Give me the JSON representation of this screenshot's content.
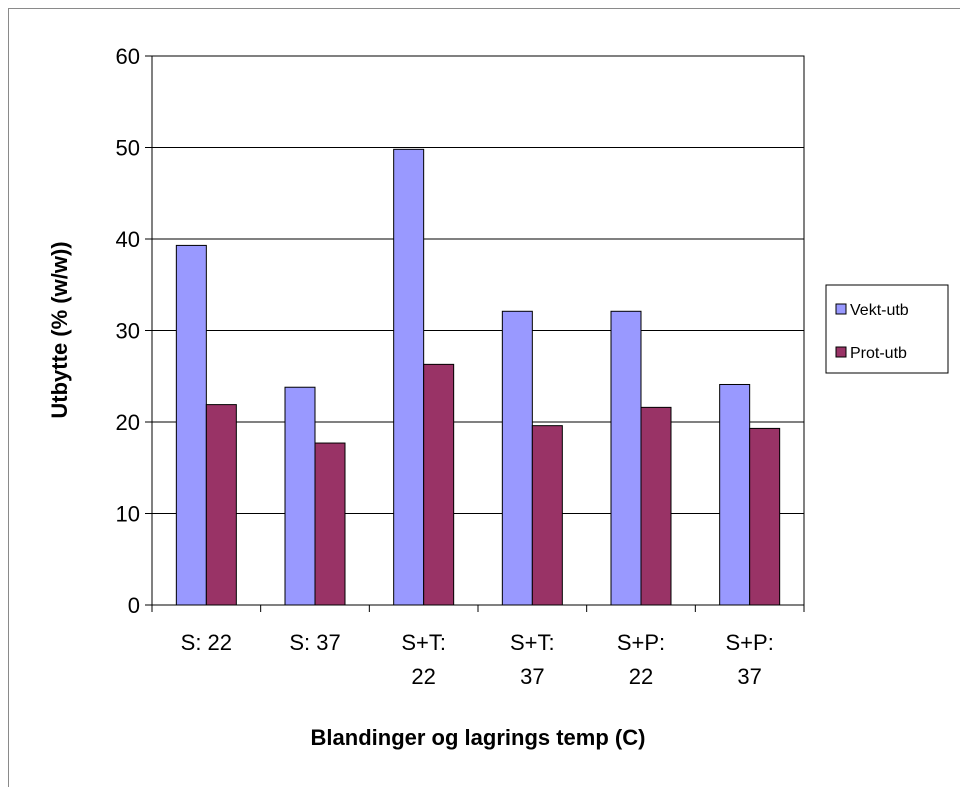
{
  "chart_data": {
    "type": "bar",
    "title": "",
    "xlabel": "Blandinger og lagrings temp (C)",
    "ylabel": "Utbytte (% (w/w))",
    "categories": [
      [
        "S: 22"
      ],
      [
        "S: 37"
      ],
      [
        "S+T:",
        "22"
      ],
      [
        "S+T:",
        "37"
      ],
      [
        "S+P:",
        "22"
      ],
      [
        "S+P:",
        "37"
      ]
    ],
    "series": [
      {
        "name": "Vekt-utb",
        "color": "#9999ff",
        "values": [
          39.3,
          23.8,
          49.8,
          32.1,
          32.1,
          24.1
        ]
      },
      {
        "name": "Prot-utb",
        "color": "#993366",
        "values": [
          21.9,
          17.7,
          26.3,
          19.6,
          21.6,
          19.3
        ]
      }
    ],
    "ylim": [
      0,
      60
    ],
    "yticks": [
      0,
      10,
      20,
      30,
      40,
      50,
      60
    ],
    "grid": true,
    "legend_position": "right"
  }
}
